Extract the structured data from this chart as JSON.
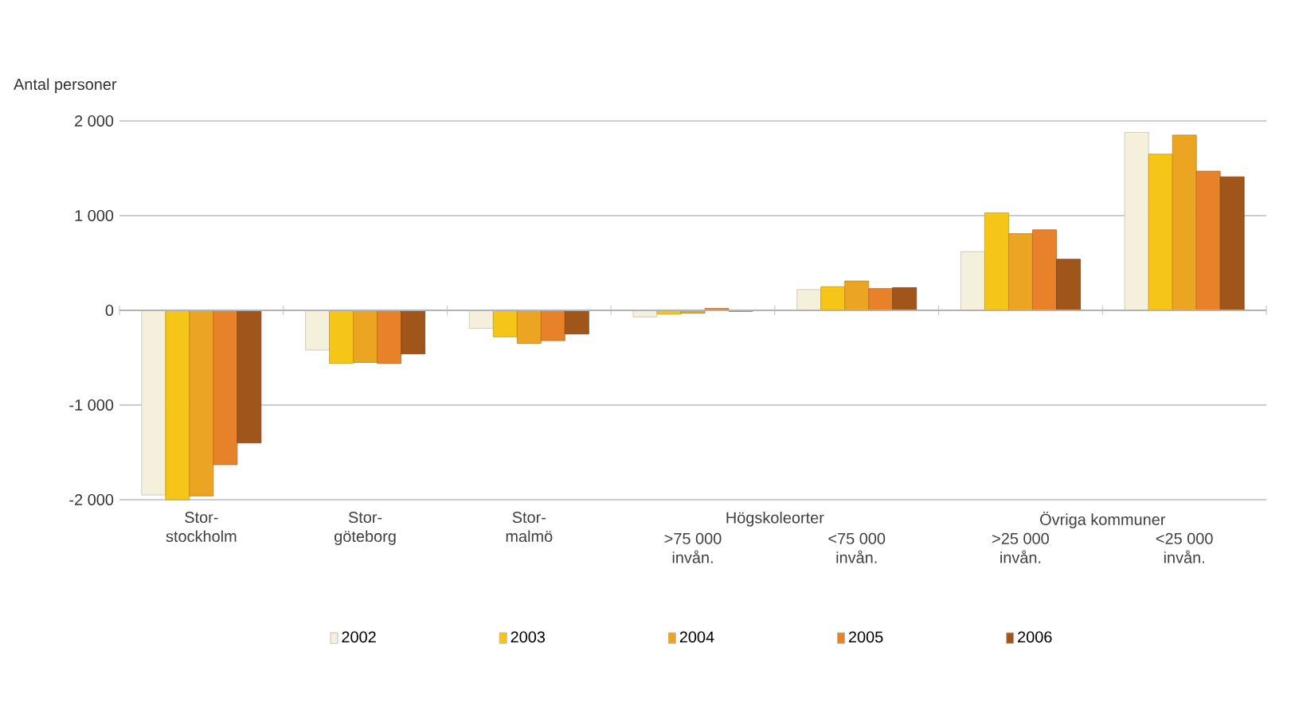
{
  "chart_data": {
    "type": "bar",
    "ylabel": "Antal personer",
    "categories": [
      "Stor-stockholm",
      "Stor-göteborg",
      "Stor-malmö",
      ">75 000 invån.",
      "<75 000 invån.",
      ">25 000 invån.",
      "<25 000 invån."
    ],
    "annotations": [
      "Högskoleorter",
      "Övriga kommuner"
    ],
    "series": [
      {
        "name": "2002",
        "color": "#f5f0dc",
        "values": [
          -1950,
          -420,
          -190,
          -70,
          220,
          620,
          1880
        ]
      },
      {
        "name": "2003",
        "color": "#f5c518",
        "values": [
          -2000,
          -560,
          -280,
          -40,
          250,
          1030,
          1650
        ]
      },
      {
        "name": "2004",
        "color": "#eba523",
        "values": [
          -1960,
          -550,
          -350,
          -30,
          310,
          810,
          1850
        ]
      },
      {
        "name": "2005",
        "color": "#e8822a",
        "values": [
          -1630,
          -560,
          -320,
          20,
          230,
          850,
          1470
        ]
      },
      {
        "name": "2006",
        "color": "#a0561a",
        "values": [
          -1400,
          -460,
          -250,
          -10,
          240,
          540,
          1410
        ]
      }
    ],
    "ylim": [
      -2000,
      2000
    ],
    "yticks": [
      {
        "value": -2000,
        "label": "-2 000"
      },
      {
        "value": -1000,
        "label": "-1 000"
      },
      0,
      {
        "value": 1000,
        "label": "1 000"
      },
      {
        "value": 2000,
        "label": "2 000"
      }
    ],
    "grid": "y",
    "legend": "bottom"
  }
}
